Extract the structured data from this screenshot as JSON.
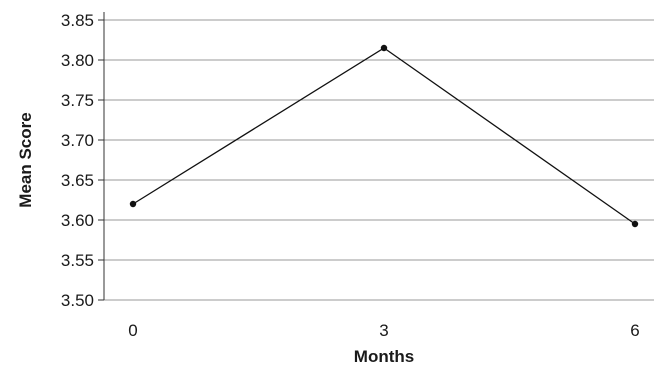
{
  "chart_data": {
    "type": "line",
    "title": "",
    "xlabel": "Months",
    "ylabel": "Mean Score",
    "categories": [
      "0",
      "3",
      "6"
    ],
    "x": [
      0,
      3,
      6
    ],
    "series": [
      {
        "values": [
          3.62,
          3.815,
          3.595
        ]
      }
    ],
    "ylim": [
      3.5,
      3.85
    ],
    "yticks": [
      "3.50",
      "3.55",
      "3.60",
      "3.65",
      "3.70",
      "3.75",
      "3.80",
      "3.85"
    ],
    "grid": "horizontal",
    "legend": "none",
    "colors": {
      "line": "#111111",
      "marker": "#111111",
      "grid": "#9a9a9a",
      "axis": "#333333"
    }
  }
}
